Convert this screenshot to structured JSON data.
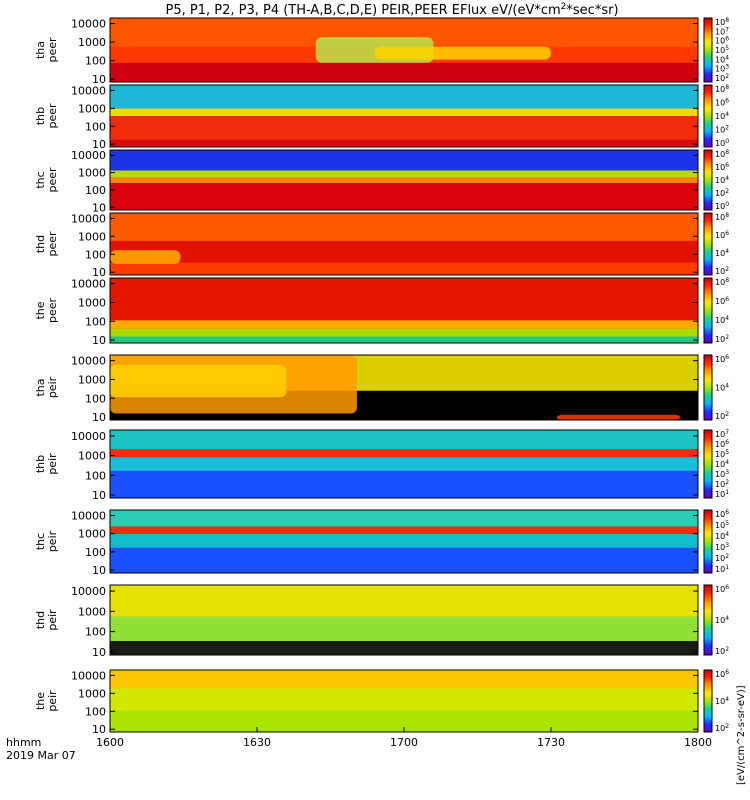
{
  "chart_data": {
    "type": "heatmap",
    "title": "P5, P1, P2, P3, P4 (TH-A,B,C,D,E) PEIR,PEER EFlux eV/(eV*cm^2*sec*sr)",
    "x_axis": {
      "range": [
        "1600",
        "1800"
      ],
      "ticks": [
        "1600",
        "1630",
        "1700",
        "1730",
        "1800"
      ],
      "label": "hhmm",
      "date_label": "2019 Mar 07"
    },
    "y_axis": {
      "scale": "log",
      "range": [
        7,
        20000
      ],
      "ticks": [
        "10",
        "100",
        "1000",
        "10000"
      ]
    },
    "colorbar_unit_label": "[eV/(cm^2-s-sr-eV)]",
    "colorscale": [
      "#6f00b0",
      "#1f2cff",
      "#00b7ff",
      "#1bd48a",
      "#a6e400",
      "#ffe600",
      "#ff9a00",
      "#ff2a00",
      "#c8000f"
    ],
    "panels": [
      {
        "label": [
          "tha",
          "peer"
        ],
        "colorbar_ticks": [
          "10^8",
          "10^7",
          "10^6",
          "10^5",
          "10^4",
          "10^3",
          "10^2"
        ],
        "description": "intense red at low energy, green/yellow intrusion near 1630-1700 between 20-500 eV"
      },
      {
        "label": [
          "thb",
          "peer"
        ],
        "colorbar_ticks": [
          "10^8",
          "10^6",
          "10^4",
          "10^2",
          "10^0"
        ],
        "description": "cyan noise above 3000 eV, yellow band near 1000 eV, red band 10-300 eV"
      },
      {
        "label": [
          "thc",
          "peer"
        ],
        "colorbar_ticks": [
          "10^8",
          "10^6",
          "10^4",
          "10^2",
          "10^0"
        ],
        "description": "blue noise above 2000 eV, green-yellow near 700 eV, red 10-300 eV"
      },
      {
        "label": [
          "thd",
          "peer"
        ],
        "colorbar_ticks": [
          "10^8",
          "10^6",
          "10^4",
          "10^2"
        ],
        "description": "mostly red across all energies with orange patches"
      },
      {
        "label": [
          "the",
          "peer"
        ],
        "colorbar_ticks": [
          "10^8",
          "10^6",
          "10^4",
          "10^2"
        ],
        "description": "red above 150 eV, yellow-green band near 50 eV"
      },
      {
        "label": [
          "tha",
          "peir"
        ],
        "colorbar_ticks": [
          "10^6",
          "10^4",
          "10^2"
        ],
        "description": "yellow/orange ion population until ~1640, then sparse, black no-data at low energy after 1640"
      },
      {
        "label": [
          "thb",
          "peir"
        ],
        "colorbar_ticks": [
          "10^7",
          "10^6",
          "10^5",
          "10^4",
          "10^3",
          "10^2",
          "10^1"
        ],
        "description": "red band near 2000 eV, green-cyan elsewhere, blue noise at low energy"
      },
      {
        "label": [
          "thc",
          "peir"
        ],
        "colorbar_ticks": [
          "10^6",
          "10^5",
          "10^4",
          "10^3",
          "10^2",
          "10^1"
        ],
        "description": "red band near 1000 eV, cyan-green background, blue noise below 100 eV"
      },
      {
        "label": [
          "thd",
          "peir"
        ],
        "colorbar_ticks": [
          "10^6",
          "10^4",
          "10^2"
        ],
        "description": "yellow-green across most energies, black speckle below 30 eV"
      },
      {
        "label": [
          "the",
          "peir"
        ],
        "colorbar_ticks": [
          "10^6",
          "10^4",
          "10^2"
        ],
        "description": "yellow above 1000 eV, green-yellow mid energies"
      }
    ]
  }
}
